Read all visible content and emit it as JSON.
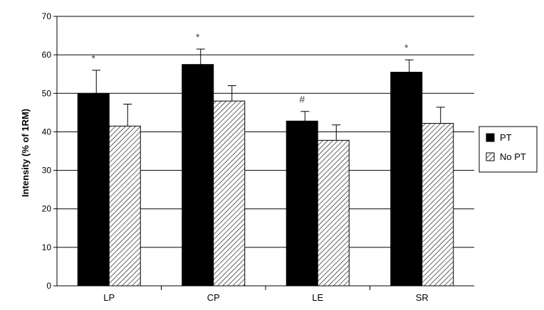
{
  "chart_data": {
    "type": "bar",
    "title": "",
    "xlabel": "",
    "ylabel": "Intensity (% of 1RM)",
    "ylim": [
      0,
      70
    ],
    "yticks": [
      0,
      10,
      20,
      30,
      40,
      50,
      60,
      70
    ],
    "grid": true,
    "legend_position": "right",
    "categories": [
      "LP",
      "CP",
      "LE",
      "SR"
    ],
    "series": [
      {
        "name": "PT",
        "values": [
          50.0,
          57.5,
          42.8,
          55.5
        ],
        "errors": [
          6.0,
          4.0,
          2.5,
          3.2
        ],
        "fill": "#000000"
      },
      {
        "name": "No PT",
        "values": [
          41.5,
          48.0,
          37.8,
          42.2
        ],
        "errors": [
          5.7,
          4.0,
          4.0,
          4.2
        ],
        "fill": "hatched"
      }
    ],
    "annotations": [
      {
        "category": "LP",
        "series": "PT",
        "text": "*"
      },
      {
        "category": "CP",
        "series": "PT",
        "text": "*"
      },
      {
        "category": "LE",
        "series": "PT",
        "text": "#"
      },
      {
        "category": "SR",
        "series": "PT",
        "text": "*"
      }
    ]
  }
}
